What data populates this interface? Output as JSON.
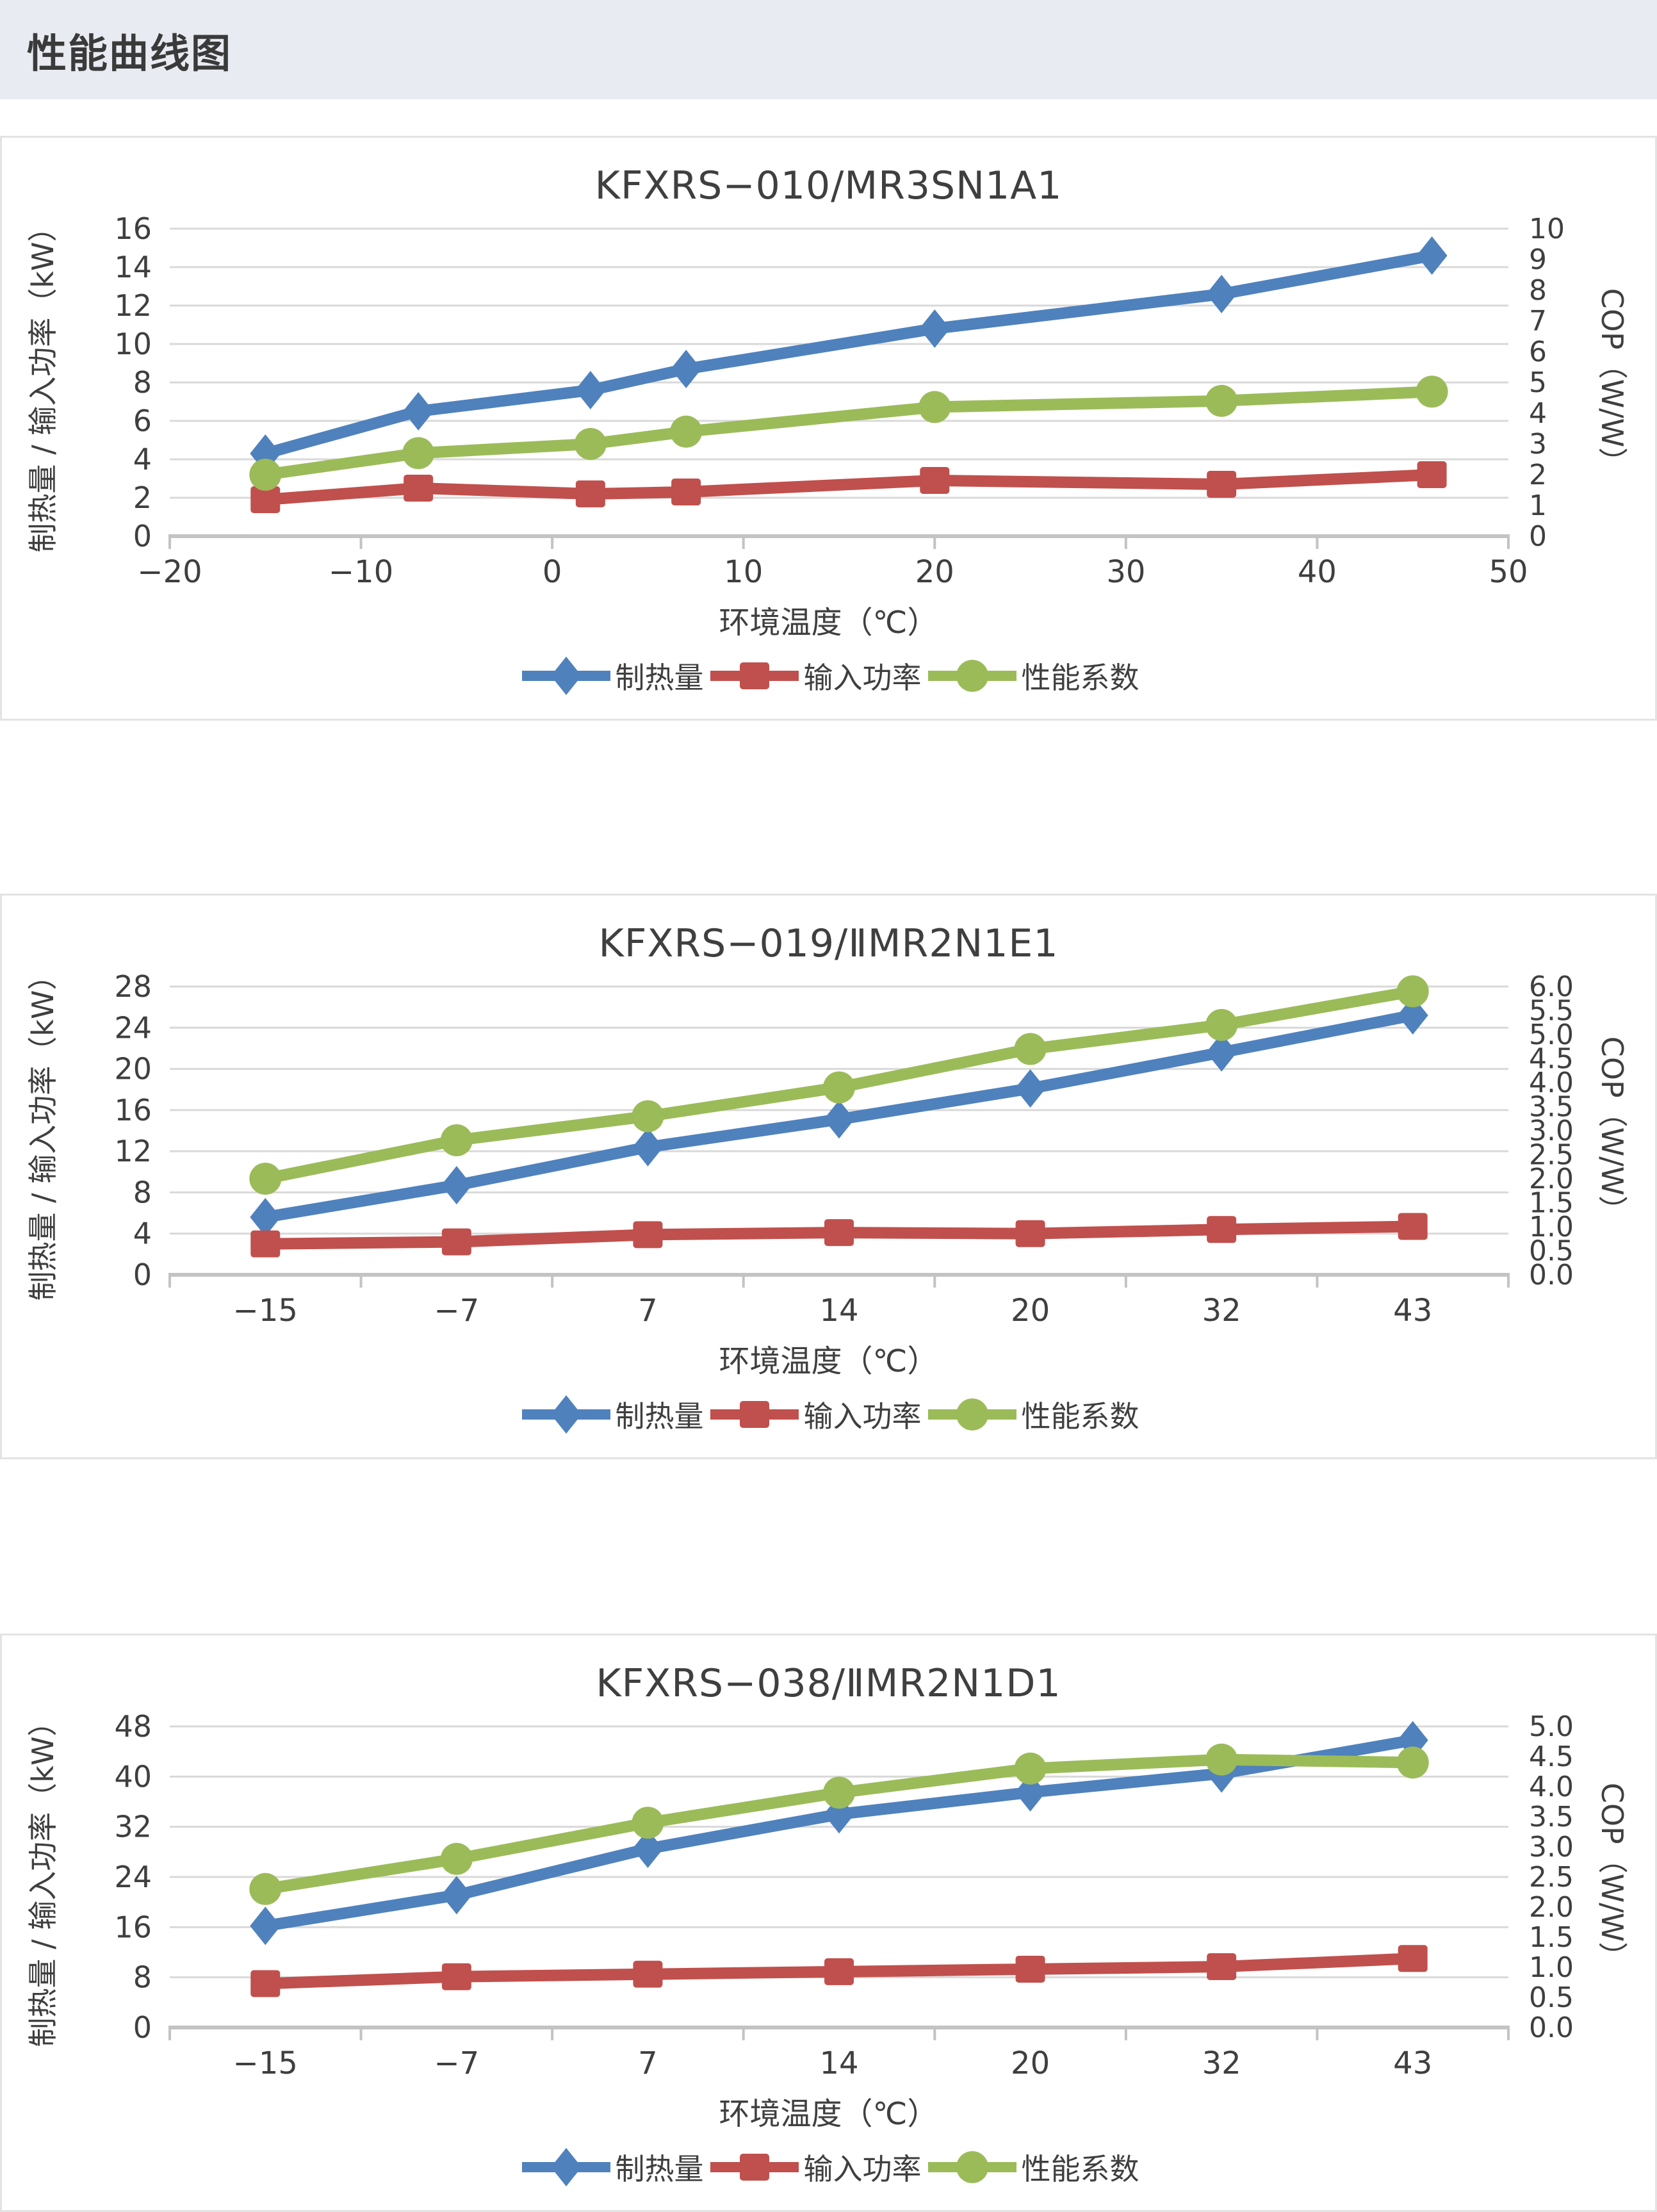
{
  "header": {
    "title": "性能曲线图"
  },
  "colors": {
    "heating": "#4F81BD",
    "input_power": "#C0504D",
    "cop": "#9BBB59",
    "gridline": "#D9D9D9",
    "axis_line": "#C3C3C3",
    "text": "#3F3F3F",
    "header_bg": "#E9EBF2",
    "panel_border": "#E3E3E3"
  },
  "chart_data": [
    {
      "type": "line",
      "title": "KFXRS−010/MR3SN1A1",
      "x_title": "环境温度（℃）",
      "y_left_title": "制热量 / 输入功率（kW）",
      "y_right_title": "COP（W/W）",
      "x_axis_type": "value",
      "x_min": -20,
      "x_max": 50,
      "x_tick_values": [
        -20,
        -10,
        0,
        10,
        20,
        30,
        40,
        50
      ],
      "x_tick_labels": [
        "−20",
        "−10",
        "0",
        "10",
        "20",
        "30",
        "40",
        "50"
      ],
      "x_values": [
        -15,
        -7,
        2,
        7,
        20,
        35,
        46
      ],
      "y_left": {
        "min": 0,
        "max": 16,
        "tick_labels": [
          "0",
          "2",
          "4",
          "6",
          "8",
          "10",
          "12",
          "14",
          "16"
        ]
      },
      "y_right": {
        "min": 0,
        "max": 10,
        "tick_labels": [
          "0",
          "1",
          "2",
          "3",
          "4",
          "5",
          "6",
          "7",
          "8",
          "9",
          "10"
        ]
      },
      "series": [
        {
          "name": "制热量",
          "axis": "left",
          "marker": "diamond",
          "color": "#4F81BD",
          "values": [
            4.3,
            6.5,
            7.6,
            8.7,
            10.8,
            12.6,
            14.6
          ]
        },
        {
          "name": "输入功率",
          "axis": "left",
          "marker": "square",
          "color": "#C0504D",
          "values": [
            1.9,
            2.5,
            2.2,
            2.3,
            2.9,
            2.7,
            3.2
          ]
        },
        {
          "name": "性能系数",
          "axis": "right",
          "marker": "circle",
          "color": "#9BBB59",
          "values": [
            2.0,
            2.7,
            3.0,
            3.4,
            4.2,
            4.4,
            4.7
          ]
        }
      ],
      "legend": [
        "制热量",
        "输入功率",
        "性能系数"
      ]
    },
    {
      "type": "line",
      "title": "KFXRS−019/ⅡMR2N1E1",
      "x_title": "环境温度（℃）",
      "y_left_title": "制热量 / 输入功率（kW）",
      "y_right_title": "COP（W/W）",
      "x_axis_type": "category",
      "categories": [
        "−15",
        "−7",
        "7",
        "14",
        "20",
        "32",
        "43"
      ],
      "y_left": {
        "min": 0,
        "max": 28,
        "tick_labels": [
          "0",
          "4",
          "8",
          "12",
          "16",
          "20",
          "24",
          "28"
        ]
      },
      "y_right": {
        "min": 0,
        "max": 6,
        "tick_labels": [
          "0.0",
          "0.5",
          "1.0",
          "1.5",
          "2.0",
          "2.5",
          "3.0",
          "3.5",
          "4.0",
          "4.5",
          "5.0",
          "5.5",
          "6.0"
        ]
      },
      "series": [
        {
          "name": "制热量",
          "axis": "left",
          "marker": "diamond",
          "color": "#4F81BD",
          "values": [
            5.6,
            8.7,
            12.4,
            15.1,
            18.1,
            21.6,
            25.2
          ]
        },
        {
          "name": "输入功率",
          "axis": "left",
          "marker": "square",
          "color": "#C0504D",
          "values": [
            3.0,
            3.2,
            3.9,
            4.1,
            4.0,
            4.4,
            4.7
          ]
        },
        {
          "name": "性能系数",
          "axis": "right",
          "marker": "circle",
          "color": "#9BBB59",
          "values": [
            2.0,
            2.8,
            3.3,
            3.9,
            4.7,
            5.2,
            5.9
          ]
        }
      ],
      "legend": [
        "制热量",
        "输入功率",
        "性能系数"
      ]
    },
    {
      "type": "line",
      "title": "KFXRS−038/ⅡMR2N1D1",
      "x_title": "环境温度（℃）",
      "y_left_title": "制热量 / 输入功率（kW）",
      "y_right_title": "COP（W/W）",
      "x_axis_type": "category",
      "categories": [
        "−15",
        "−7",
        "7",
        "14",
        "20",
        "32",
        "43"
      ],
      "y_left": {
        "min": 0,
        "max": 48,
        "tick_labels": [
          "0",
          "8",
          "16",
          "24",
          "32",
          "40",
          "48"
        ]
      },
      "y_right": {
        "min": 0,
        "max": 5,
        "tick_labels": [
          "0.0",
          "0.5",
          "1.0",
          "1.5",
          "2.0",
          "2.5",
          "3.0",
          "3.5",
          "4.0",
          "4.5",
          "5.0"
        ]
      },
      "series": [
        {
          "name": "制热量",
          "axis": "left",
          "marker": "diamond",
          "color": "#4F81BD",
          "values": [
            16.2,
            21.1,
            28.5,
            34.0,
            37.5,
            40.5,
            45.8
          ]
        },
        {
          "name": "输入功率",
          "axis": "left",
          "marker": "square",
          "color": "#C0504D",
          "values": [
            7.0,
            8.1,
            8.5,
            8.9,
            9.3,
            9.7,
            11.0
          ]
        },
        {
          "name": "性能系数",
          "axis": "right",
          "marker": "circle",
          "color": "#9BBB59",
          "values": [
            2.3,
            2.8,
            3.4,
            3.9,
            4.3,
            4.45,
            4.4
          ]
        }
      ],
      "legend": [
        "制热量",
        "输入功率",
        "性能系数"
      ]
    }
  ]
}
